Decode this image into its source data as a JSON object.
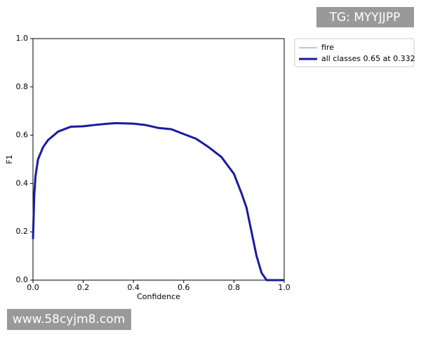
{
  "chart_data": {
    "type": "line",
    "xlabel": "Confidence",
    "ylabel": "F1",
    "x": [
      0,
      0.005,
      0.01,
      0.02,
      0.04,
      0.06,
      0.1,
      0.15,
      0.2,
      0.25,
      0.3,
      0.332,
      0.4,
      0.45,
      0.5,
      0.55,
      0.6,
      0.65,
      0.7,
      0.75,
      0.8,
      0.83,
      0.85,
      0.87,
      0.89,
      0.91,
      0.93,
      0.95,
      1.0
    ],
    "series": [
      {
        "name": "fire",
        "color": "#5f9ea0",
        "width": 1,
        "values": [
          0.17,
          0.35,
          0.43,
          0.5,
          0.55,
          0.58,
          0.615,
          0.635,
          0.637,
          0.643,
          0.648,
          0.65,
          0.648,
          0.642,
          0.63,
          0.625,
          0.605,
          0.585,
          0.55,
          0.51,
          0.44,
          0.36,
          0.3,
          0.2,
          0.1,
          0.03,
          0,
          0,
          0
        ]
      },
      {
        "name": "all classes 0.65 at 0.332",
        "color": "#1a1aa0",
        "width": 3,
        "values": [
          0.17,
          0.35,
          0.43,
          0.5,
          0.55,
          0.58,
          0.615,
          0.635,
          0.637,
          0.643,
          0.648,
          0.65,
          0.648,
          0.642,
          0.63,
          0.625,
          0.605,
          0.585,
          0.55,
          0.51,
          0.44,
          0.36,
          0.3,
          0.2,
          0.1,
          0.03,
          0,
          0,
          0
        ]
      }
    ],
    "xlim": [
      0,
      1
    ],
    "ylim": [
      0,
      1
    ],
    "xticks": [
      {
        "value": 0,
        "label": "0.0"
      },
      0.2,
      0.4,
      0.6,
      0.8,
      {
        "value": 1,
        "label": "1.0"
      }
    ],
    "yticks": [
      {
        "value": 0,
        "label": "0.0"
      },
      0.2,
      0.4,
      0.6,
      0.8,
      {
        "value": 1,
        "label": "1.0"
      }
    ],
    "legend": "upper-right-outside"
  },
  "watermarks": [
    "TG: MYYJJPP",
    "www.58cyjm8.com"
  ]
}
